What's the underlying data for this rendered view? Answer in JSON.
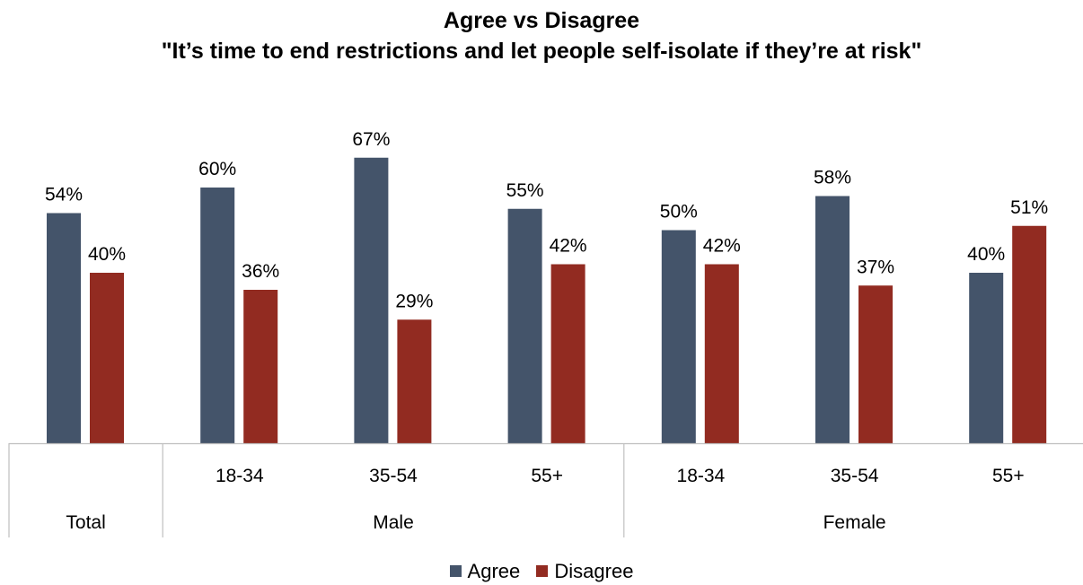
{
  "chart_data": {
    "type": "bar",
    "title": "Agree vs Disagree",
    "subtitle": "\"It’s time to end restrictions and let people self-isolate if they’re at risk\"",
    "categories": [
      {
        "label": "",
        "group": "Total"
      },
      {
        "label": "18-34",
        "group": "Male"
      },
      {
        "label": "35-54",
        "group": "Male"
      },
      {
        "label": "55+",
        "group": "Male"
      },
      {
        "label": "18-34",
        "group": "Female"
      },
      {
        "label": "35-54",
        "group": "Female"
      },
      {
        "label": "55+",
        "group": "Female"
      }
    ],
    "groups": [
      "Total",
      "Male",
      "Female"
    ],
    "series": [
      {
        "name": "Agree",
        "color": "#44546A",
        "values": [
          54,
          60,
          67,
          55,
          50,
          58,
          40
        ],
        "labels": [
          "54%",
          "60%",
          "67%",
          "55%",
          "50%",
          "58%",
          "40%"
        ]
      },
      {
        "name": "Disagree",
        "color": "#922B21",
        "values": [
          40,
          36,
          29,
          42,
          42,
          37,
          51
        ],
        "labels": [
          "40%",
          "36%",
          "29%",
          "42%",
          "42%",
          "37%",
          "51%"
        ]
      }
    ],
    "ylim": [
      0,
      100
    ],
    "grid": false,
    "legend_position": "bottom"
  }
}
